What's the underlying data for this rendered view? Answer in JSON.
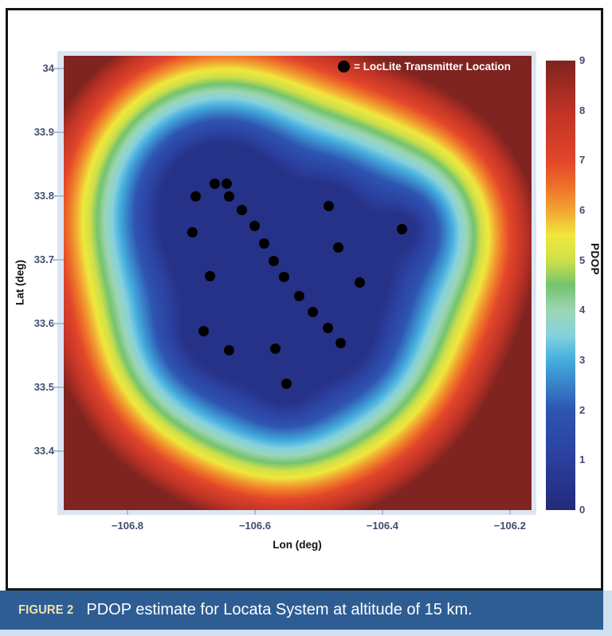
{
  "figure": {
    "caption_label": "FIGURE 2",
    "caption_text": "PDOP estimate for Locata System at altitude of 15 km."
  },
  "legend": {
    "marker": "filled-black-circle",
    "text": "= LocLite Transmitter Location"
  },
  "colors": {
    "page_bg": "#ffffff",
    "frame_border": "#151515",
    "plot_margin_bg": "#dce6f3",
    "tick_label": "#3f4e6e",
    "axis_label": "#111111",
    "legend_text": "#ffffff",
    "transmitter_dot": "#000000",
    "caption_bar": "#2e5d94",
    "caption_label": "#f0e2ab",
    "caption_text": "#ffffff",
    "caption_edge": "#cfe0ef"
  },
  "chart_data": {
    "type": "heatmap",
    "title": "",
    "xlabel": "Lon (deg)",
    "ylabel": "Lat (deg)",
    "x_range": [
      -106.9,
      -106.166
    ],
    "y_range": [
      33.308,
      34.02
    ],
    "x_ticks": [
      -106.8,
      -106.6,
      -106.4,
      -106.2
    ],
    "x_tick_labels": [
      "−106.8",
      "−106.6",
      "−106.4",
      "−106.2"
    ],
    "y_ticks": [
      34,
      33.9,
      33.8,
      33.7,
      33.6,
      33.5,
      33.4
    ],
    "y_tick_labels": [
      "34",
      "33.9",
      "33.8",
      "33.7",
      "33.6",
      "33.5",
      "33.4"
    ],
    "colorbar_label": "PDOP",
    "colorbar_range": [
      0,
      9
    ],
    "colorbar_ticks": [
      0,
      1,
      2,
      3,
      4,
      5,
      6,
      7,
      8,
      9
    ],
    "colormap": "jet-like",
    "colormap_stops": [
      [
        0,
        "#232a78"
      ],
      [
        1,
        "#2b3f9e"
      ],
      [
        2,
        "#2e55b2"
      ],
      [
        3,
        "#45aede"
      ],
      [
        3.5,
        "#86d2de"
      ],
      [
        4,
        "#9cd6b4"
      ],
      [
        4.5,
        "#74c46e"
      ],
      [
        5,
        "#cfe04a"
      ],
      [
        5.5,
        "#f0e83c"
      ],
      [
        6,
        "#f2a532"
      ],
      [
        6.5,
        "#ee7029"
      ],
      [
        7,
        "#e2462a"
      ],
      [
        8,
        "#bf3326"
      ],
      [
        9,
        "#7f2420"
      ]
    ],
    "field_model": {
      "base": 0.4,
      "slope_per_deg": 45,
      "dead_zone_deg": 0.01,
      "softmin_r0_deg": 0.04,
      "max": 9
    },
    "transmitters": [
      [
        -106.663,
        33.819
      ],
      [
        -106.644,
        33.819
      ],
      [
        -106.693,
        33.799
      ],
      [
        -106.64,
        33.799
      ],
      [
        -106.62,
        33.778
      ],
      [
        -106.6,
        33.753
      ],
      [
        -106.698,
        33.743
      ],
      [
        -106.586,
        33.726
      ],
      [
        -106.57,
        33.698
      ],
      [
        -106.554,
        33.673
      ],
      [
        -106.671,
        33.675
      ],
      [
        -106.531,
        33.644
      ],
      [
        -106.509,
        33.619
      ],
      [
        -106.486,
        33.594
      ],
      [
        -106.466,
        33.57
      ],
      [
        -106.68,
        33.588
      ],
      [
        -106.641,
        33.559
      ],
      [
        -106.568,
        33.561
      ],
      [
        -106.551,
        33.506
      ],
      [
        -106.484,
        33.784
      ],
      [
        -106.369,
        33.748
      ],
      [
        -106.469,
        33.72
      ],
      [
        -106.435,
        33.665
      ]
    ]
  }
}
